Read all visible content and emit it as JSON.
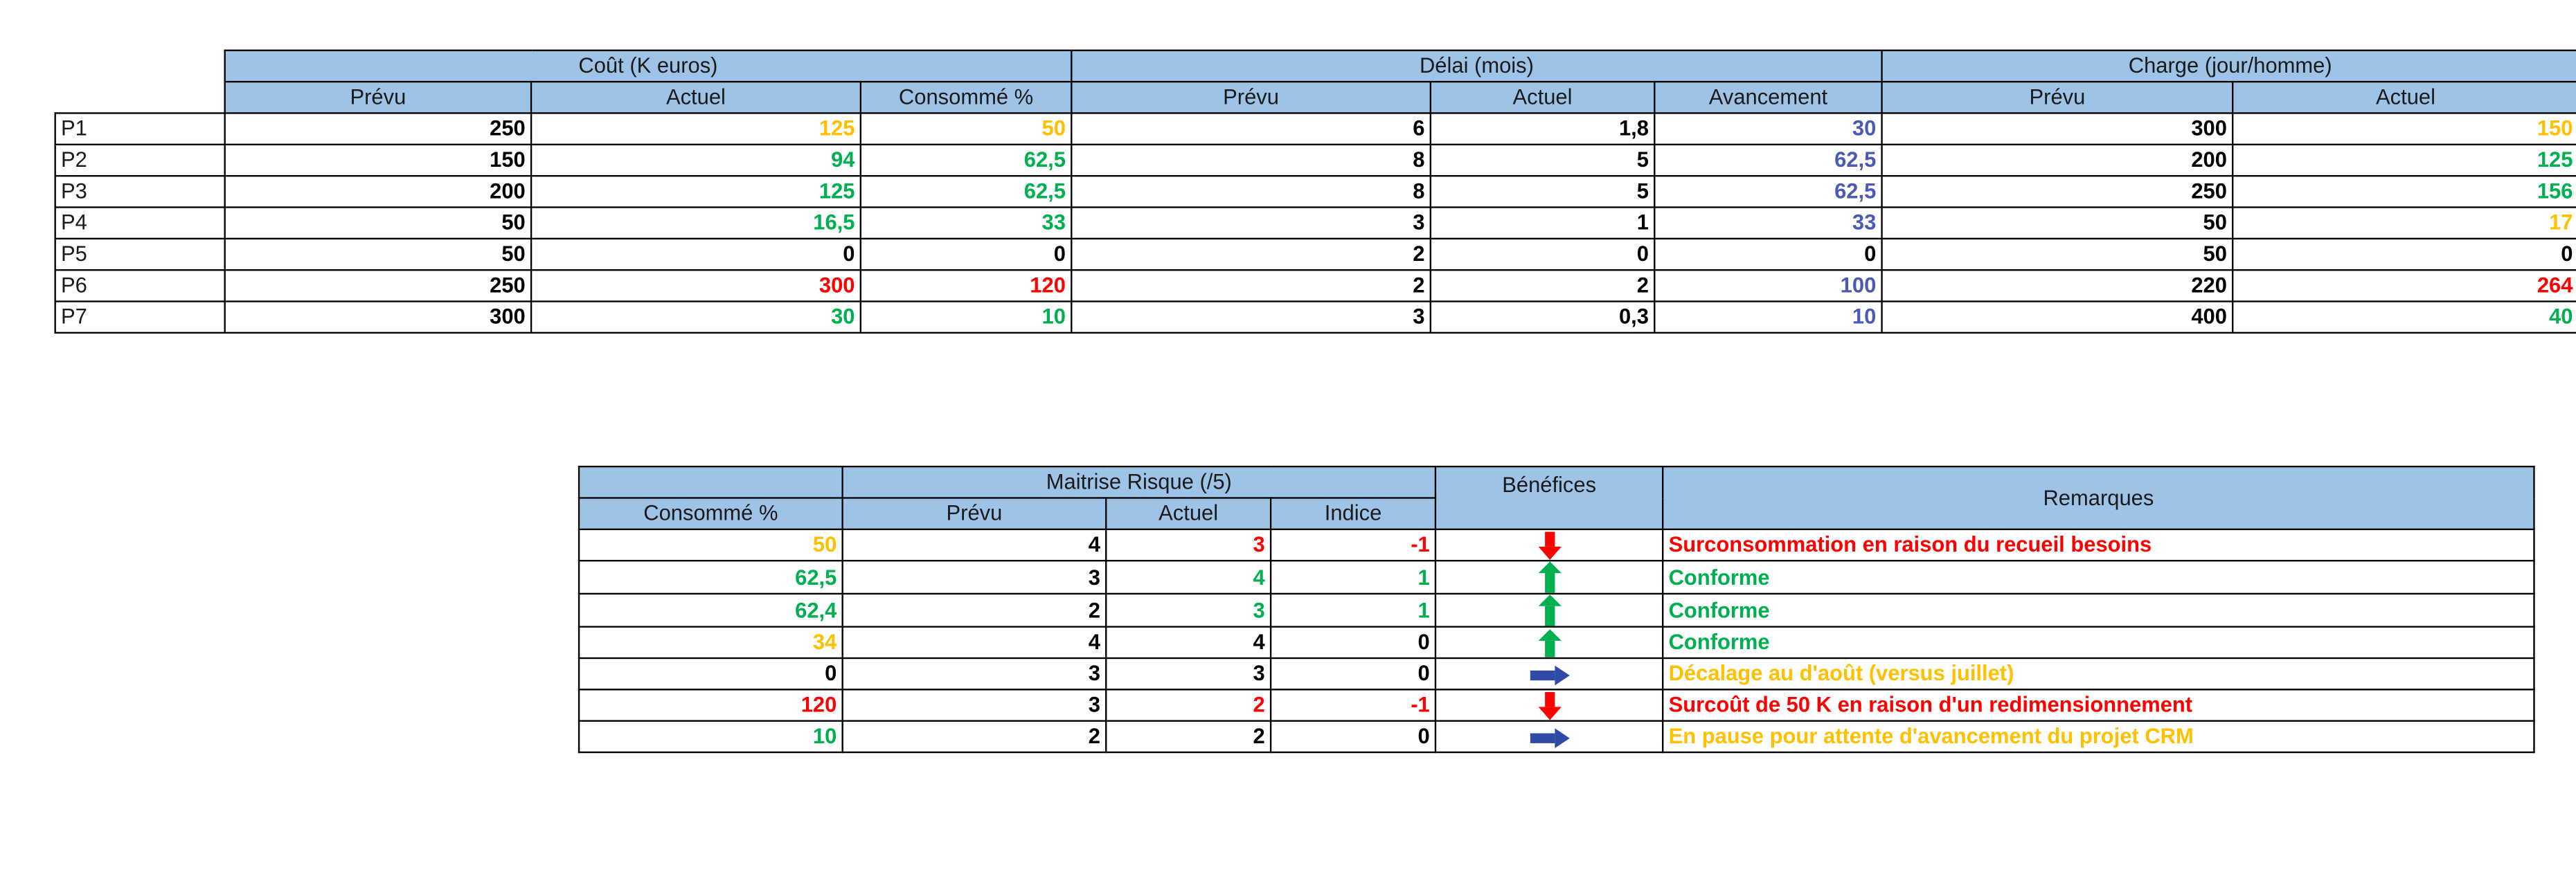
{
  "top_table": {
    "groups": {
      "cout": "Coût (K euros)",
      "delai": "Délai (mois)",
      "charge": "Charge (jour/homme)"
    },
    "columns": [
      "Prévu",
      "Actuel",
      "Consommé %",
      "Prévu",
      "Actuel",
      "Avancement",
      "Prévu",
      "Actuel"
    ],
    "rows": [
      {
        "label": "P1",
        "cout_prevu": "250",
        "cout_actuel": "125",
        "cout_conso": "50",
        "delai_prevu": "6",
        "delai_actuel": "1,8",
        "avancement": "30",
        "charge_prevu": "300",
        "charge_actuel": "150"
      },
      {
        "label": "P2",
        "cout_prevu": "150",
        "cout_actuel": "94",
        "cout_conso": "62,5",
        "delai_prevu": "8",
        "delai_actuel": "5",
        "avancement": "62,5",
        "charge_prevu": "200",
        "charge_actuel": "125"
      },
      {
        "label": "P3",
        "cout_prevu": "200",
        "cout_actuel": "125",
        "cout_conso": "62,5",
        "delai_prevu": "8",
        "delai_actuel": "5",
        "avancement": "62,5",
        "charge_prevu": "250",
        "charge_actuel": "156"
      },
      {
        "label": "P4",
        "cout_prevu": "50",
        "cout_actuel": "16,5",
        "cout_conso": "33",
        "delai_prevu": "3",
        "delai_actuel": "1",
        "avancement": "33",
        "charge_prevu": "50",
        "charge_actuel": "17"
      },
      {
        "label": "P5",
        "cout_prevu": "50",
        "cout_actuel": "0",
        "cout_conso": "0",
        "delai_prevu": "2",
        "delai_actuel": "0",
        "avancement": "0",
        "charge_prevu": "50",
        "charge_actuel": "0"
      },
      {
        "label": "P6",
        "cout_prevu": "250",
        "cout_actuel": "300",
        "cout_conso": "120",
        "delai_prevu": "2",
        "delai_actuel": "2",
        "avancement": "100",
        "charge_prevu": "220",
        "charge_actuel": "264"
      },
      {
        "label": "P7",
        "cout_prevu": "300",
        "cout_actuel": "30",
        "cout_conso": "10",
        "delai_prevu": "3",
        "delai_actuel": "0,3",
        "avancement": "10",
        "charge_prevu": "400",
        "charge_actuel": "40"
      }
    ]
  },
  "bottom_table": {
    "groups": {
      "risque": "Maitrise Risque (/5)",
      "benefices": "Bénéfices",
      "remarques": "Remarques"
    },
    "columns": [
      "Consommé %",
      "Prévu",
      "Actuel",
      "Indice"
    ],
    "rows": [
      {
        "conso": "50",
        "prevu": "4",
        "actuel": "3",
        "indice": "-1",
        "arrow": "arrow-down-red",
        "remarque": "Surconsommation en raison du recueil besoins"
      },
      {
        "conso": "62,5",
        "prevu": "3",
        "actuel": "4",
        "indice": "1",
        "arrow": "arrow-up-green",
        "remarque": "Conforme"
      },
      {
        "conso": "62,4",
        "prevu": "2",
        "actuel": "3",
        "indice": "1",
        "arrow": "arrow-up-green",
        "remarque": "Conforme"
      },
      {
        "conso": "34",
        "prevu": "4",
        "actuel": "4",
        "indice": "0",
        "arrow": "arrow-up-green",
        "remarque": "Conforme"
      },
      {
        "conso": "0",
        "prevu": "3",
        "actuel": "3",
        "indice": "0",
        "arrow": "arrow-right-blue",
        "remarque": "Décalage au d'août (versus juillet)"
      },
      {
        "conso": "120",
        "prevu": "3",
        "actuel": "2",
        "indice": "-1",
        "arrow": "arrow-down-red",
        "remarque": "Surcoût de 50 K en raison d'un redimensionnement"
      },
      {
        "conso": "10",
        "prevu": "2",
        "actuel": "2",
        "indice": "0",
        "arrow": "arrow-right-blue",
        "remarque": "En pause pour attente d'avancement du projet CRM"
      }
    ]
  },
  "colors": {
    "header_blue": "#9DC3E6",
    "green": "#00B050",
    "orange": "#FFC000",
    "red": "#FF0000",
    "blue": "#4B5BB5",
    "arrow_blue": "#2E4BA8"
  }
}
